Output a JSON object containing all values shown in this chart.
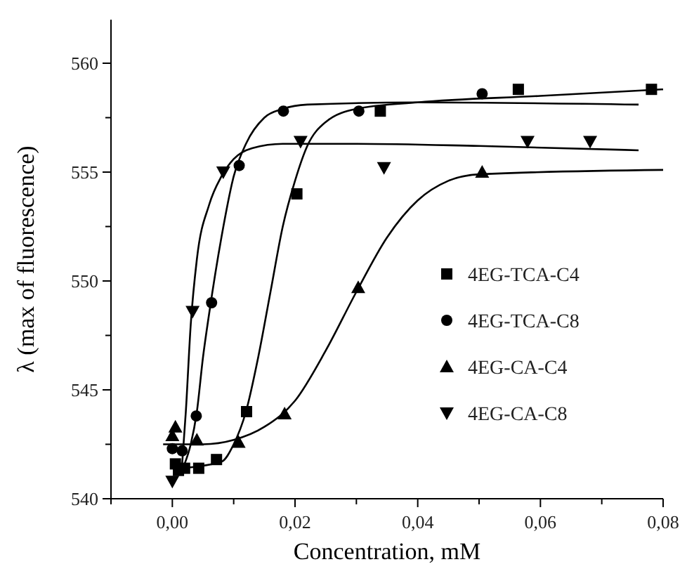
{
  "chart_data": {
    "type": "scatter",
    "xlabel": "Concentration, mM",
    "ylabel": "λ (max of fluorescence)",
    "xlim": [
      -0.01,
      0.08
    ],
    "ylim": [
      540,
      562
    ],
    "xticks": [
      {
        "value": -0.01,
        "label": null
      },
      {
        "value": 0,
        "label": "0,00"
      },
      {
        "value": 0.01,
        "label": null
      },
      {
        "value": 0.02,
        "label": "0,02"
      },
      {
        "value": 0.03,
        "label": null
      },
      {
        "value": 0.04,
        "label": "0,04"
      },
      {
        "value": 0.05,
        "label": null
      },
      {
        "value": 0.06,
        "label": "0,06"
      },
      {
        "value": 0.07,
        "label": null
      },
      {
        "value": 0.08,
        "label": "0,08"
      }
    ],
    "yticks": [
      540,
      {
        "value": 542.5,
        "label": null
      },
      545,
      {
        "value": 547.5,
        "label": null
      },
      550,
      {
        "value": 552.5,
        "label": null
      },
      555,
      {
        "value": 557.5,
        "label": null
      },
      560
    ],
    "grid": false,
    "legend": "right",
    "series": [
      {
        "name": "4EG-TCA-C4",
        "color": "#000000",
        "marker": "square",
        "x": [
          0.0005,
          0.001,
          0.002,
          0.0043,
          0.0072,
          0.0121,
          0.0203,
          0.0339,
          0.0564,
          0.0781
        ],
        "values": [
          541.6,
          541.3,
          541.4,
          541.4,
          541.8,
          544.0,
          554.0,
          557.8,
          558.8,
          558.8
        ]
      },
      {
        "name": "4EG-TCA-C8",
        "color": "#000000",
        "marker": "circle",
        "x": [
          0,
          0.0016,
          0.0039,
          0.0064,
          0.0109,
          0.0181,
          0.0304,
          0.0505
        ],
        "values": [
          542.3,
          542.2,
          543.8,
          549.0,
          555.3,
          557.8,
          557.8,
          558.6
        ]
      },
      {
        "name": "4EG-CA-C4",
        "color": "#000000",
        "marker": "triangle",
        "x": [
          0,
          0.0005,
          0.004,
          0.0108,
          0.0183,
          0.0303,
          0.0505
        ],
        "values": [
          542.9,
          543.3,
          542.7,
          542.6,
          543.9,
          549.7,
          555.0
        ]
      },
      {
        "name": "4EG-CA-C8",
        "color": "#000000",
        "marker": "triangle-down",
        "x": [
          0,
          0.0033,
          0.0083,
          0.0209,
          0.0345,
          0.0579,
          0.0681
        ],
        "values": [
          540.8,
          548.6,
          555.0,
          556.4,
          555.2,
          556.4,
          556.4
        ]
      },
      {
        "type": "line",
        "color": "#000000",
        "marker": "none",
        "x": [
          0.001,
          0.008,
          0.01,
          0.012,
          0.014,
          0.016,
          0.018,
          0.02,
          0.022,
          0.025,
          0.03,
          0.04,
          0.06,
          0.08
        ],
        "values": [
          541.4,
          541.7,
          542.5,
          544,
          546.5,
          549.5,
          552.5,
          554.6,
          556.2,
          557.3,
          557.9,
          558.2,
          558.5,
          558.8
        ]
      },
      {
        "type": "line",
        "color": "#000000",
        "marker": "none",
        "x": [
          0.002,
          0.003,
          0.004,
          0.005,
          0.006,
          0.008,
          0.01,
          0.012,
          0.015,
          0.018,
          0.022,
          0.04,
          0.076
        ],
        "values": [
          541.6,
          542.5,
          544,
          546.5,
          548.5,
          552,
          554.8,
          556.3,
          557.5,
          557.9,
          558.1,
          558.2,
          558.1
        ]
      },
      {
        "type": "line",
        "color": "#000000",
        "marker": "none",
        "x": [
          -0.0015,
          0.005,
          0.01,
          0.015,
          0.02,
          0.025,
          0.03,
          0.035,
          0.04,
          0.045,
          0.05,
          0.08
        ],
        "values": [
          542.5,
          542.5,
          542.7,
          543.3,
          544.5,
          546.8,
          549.5,
          552,
          553.7,
          554.6,
          554.9,
          555.1
        ]
      },
      {
        "type": "line",
        "color": "#000000",
        "marker": "none",
        "x": [
          0.0015,
          0.0022,
          0.003,
          0.004,
          0.006,
          0.008,
          0.01,
          0.013,
          0.018,
          0.03,
          0.05,
          0.076
        ],
        "values": [
          541.2,
          544,
          548,
          551,
          553.5,
          554.8,
          555.6,
          556.1,
          556.3,
          556.3,
          556.2,
          556
        ]
      }
    ]
  }
}
